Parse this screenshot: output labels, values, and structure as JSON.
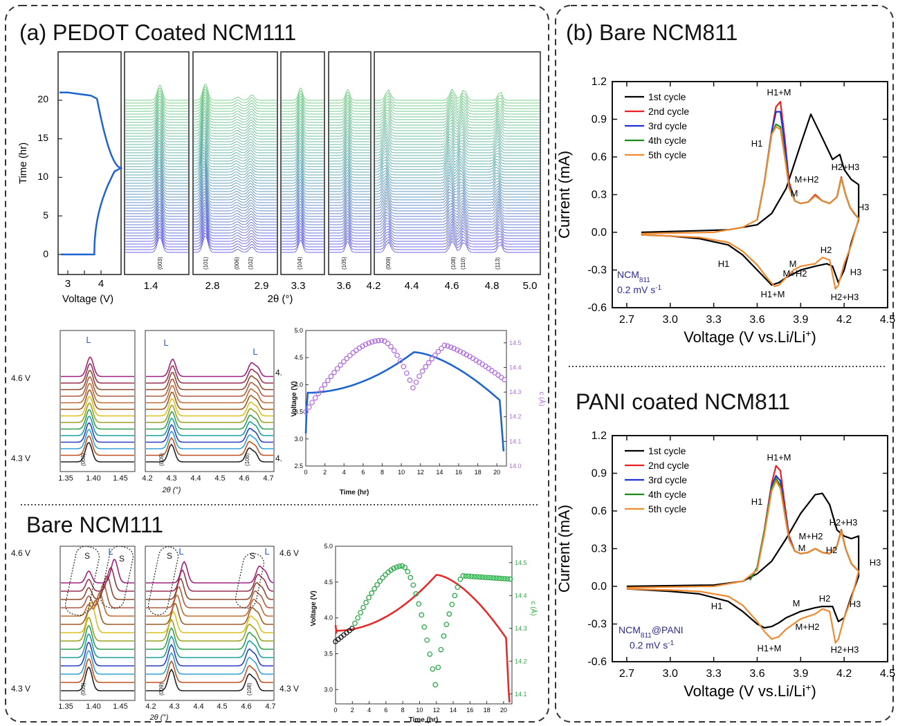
{
  "panel_a": {
    "label": "(a) PEDOT Coated NCM111",
    "waterfall": {
      "voltage_axis": {
        "xlabel": "Voltage (V)",
        "ylabel": "Time (hr)",
        "xticks": [
          "3",
          "4"
        ],
        "yticks": [
          "0",
          "5",
          "10",
          "15",
          "20"
        ]
      },
      "two_theta_label": "2θ (°)",
      "ticks": [
        "1.4",
        "2.8",
        "2.9",
        "3.3",
        "3.6",
        "4.2",
        "4.4",
        "4.6",
        "4.8",
        "5.0"
      ],
      "peak_labels": [
        "(003)",
        "(101)",
        "(006)",
        "(102)",
        "(104)",
        "(105)",
        "(009)",
        "(108)",
        "(110)",
        "(113)"
      ]
    },
    "coated_stack": {
      "voltage_labels": [
        "4.6 V",
        "4.3 V",
        "4.",
        "4."
      ],
      "marker": "L",
      "ticks_left": [
        "1.35",
        "1.40",
        "1.45"
      ],
      "ticks_right": [
        "4.2",
        "4.3",
        "4.4",
        "4.5",
        "4.6",
        "4.7"
      ],
      "peak_labels": [
        "(003)",
        "(009)",
        "(108)"
      ],
      "xlabel": "2θ (°)"
    },
    "coated_vt": {
      "xlabel": "Time (hr)",
      "ylabel": "Voltage (V)",
      "y2label": "c (Å)",
      "xticks": [
        "0",
        "2",
        "4",
        "6",
        "8",
        "10",
        "12",
        "14",
        "16",
        "18",
        "20"
      ],
      "yticks": [
        "2.5",
        "3.0",
        "3.5",
        "4.0",
        "4.5",
        "5.0"
      ],
      "y2ticks": [
        "14.0",
        "14.1",
        "14.2",
        "14.3",
        "14.4",
        "14.5"
      ]
    },
    "bare_label": "Bare NCM111",
    "bare_stack": {
      "voltage_labels": [
        "4.6 V",
        "4.3 V",
        "4.6 V",
        "4.3 V"
      ],
      "markers": [
        "S",
        "L"
      ],
      "ticks_left": [
        "1.35",
        "1.40",
        "1.45"
      ],
      "ticks_right": [
        "4.2",
        "4.3",
        "4.4",
        "4.5",
        "4.6",
        "4.7"
      ],
      "peak_labels": [
        "(003)",
        "(009)",
        "(108)"
      ],
      "xlabel": "2θ (°)"
    },
    "bare_vt": {
      "xlabel": "Time (hr)",
      "ylabel": "Voltage (V)",
      "y2label": "c (Å)",
      "xticks": [
        "0",
        "2",
        "4",
        "6",
        "8",
        "10",
        "12",
        "14",
        "16",
        "18",
        "20"
      ],
      "yticks": [
        "3.0",
        "3.5",
        "4.0",
        "4.5",
        "5.0"
      ],
      "y2ticks": [
        "14.1",
        "14.2",
        "14.3",
        "14.4",
        "14.5"
      ]
    }
  },
  "panel_b": {
    "label": "(b) Bare NCM811",
    "sub_label": "PANI coated NCM811"
  },
  "colors": {
    "cycle1": "#000000",
    "cycle2": "#e8201f",
    "cycle3": "#2030d8",
    "cycle4": "#1a8a1a",
    "cycle5": "#f08a30",
    "voltage_blue": "#1e64d0",
    "c_purple": "#b070e0",
    "voltage_red": "#e82a2a",
    "c_green": "#2ea84a",
    "note_blue": "#2a2a9a"
  },
  "chart_data": [
    {
      "type": "line",
      "title": "",
      "xlabel": "Voltage (V vs.Li/Li+)",
      "ylabel": "Current (mA)",
      "xlim": [
        2.6,
        4.5
      ],
      "ylim": [
        -0.6,
        1.2
      ],
      "xticks": [
        "2.7",
        "3.0",
        "3.3",
        "3.6",
        "3.9",
        "4.2",
        "4.5"
      ],
      "yticks": [
        "-0.6",
        "-0.3",
        "0.0",
        "0.3",
        "0.6",
        "0.9",
        "1.2"
      ],
      "legend": "top-left",
      "annotations": [
        "H1+M",
        "H1",
        "M+H2",
        "M",
        "H2+H3",
        "H3",
        "M",
        "H2",
        "H1",
        "M+H2",
        "H1+M",
        "H2+H3",
        "H3"
      ],
      "note": [
        "NCM811",
        "0.2 mV s-1"
      ],
      "series": [
        {
          "name": "1st cycle",
          "x": [
            2.8,
            3.4,
            3.6,
            3.7,
            3.8,
            3.9,
            3.97,
            4.05,
            4.12,
            4.17,
            4.2,
            4.25,
            4.3,
            4.3,
            4.25,
            4.2,
            4.16,
            4.12,
            4.08,
            4.0,
            3.9,
            3.8,
            3.75,
            3.7,
            3.6,
            3.5,
            3.4,
            3.2,
            3.0,
            2.8
          ],
          "y": [
            0.0,
            0.02,
            0.06,
            0.15,
            0.35,
            0.7,
            0.94,
            0.75,
            0.58,
            0.62,
            0.5,
            0.42,
            0.38,
            0.1,
            -0.08,
            -0.3,
            -0.4,
            -0.27,
            -0.25,
            -0.27,
            -0.3,
            -0.36,
            -0.4,
            -0.42,
            -0.3,
            -0.18,
            -0.1,
            -0.05,
            -0.03,
            -0.02
          ]
        },
        {
          "name": "2nd cycle",
          "x": [
            3.6,
            3.65,
            3.7,
            3.73,
            3.76,
            3.79,
            3.82,
            3.86,
            3.9,
            3.95,
            4.0,
            4.05,
            4.1,
            4.15,
            4.18,
            4.21,
            4.24,
            4.27,
            4.3
          ],
          "y": [
            0.1,
            0.4,
            0.8,
            1.0,
            1.04,
            0.75,
            0.4,
            0.25,
            0.23,
            0.24,
            0.3,
            0.25,
            0.23,
            0.28,
            0.44,
            0.3,
            0.2,
            0.15,
            0.11
          ]
        },
        {
          "name": "3rd cycle",
          "x": [
            3.6,
            3.65,
            3.7,
            3.73,
            3.76,
            3.79,
            3.82,
            3.86,
            3.9,
            3.95,
            4.0,
            4.05,
            4.1,
            4.15,
            4.18,
            4.21,
            4.24,
            4.27,
            4.3
          ],
          "y": [
            0.1,
            0.4,
            0.8,
            0.96,
            0.96,
            0.7,
            0.38,
            0.25,
            0.23,
            0.24,
            0.29,
            0.25,
            0.23,
            0.28,
            0.43,
            0.3,
            0.2,
            0.15,
            0.11
          ]
        },
        {
          "name": "4th cycle",
          "x": [
            3.6,
            3.65,
            3.7,
            3.73,
            3.76,
            3.79,
            3.82,
            3.86,
            3.9,
            3.95,
            4.0,
            4.05,
            4.1,
            4.15,
            4.18,
            4.21,
            4.24,
            4.27,
            4.3
          ],
          "y": [
            0.1,
            0.4,
            0.78,
            0.86,
            0.84,
            0.62,
            0.36,
            0.25,
            0.23,
            0.24,
            0.29,
            0.25,
            0.23,
            0.28,
            0.43,
            0.3,
            0.2,
            0.15,
            0.11
          ]
        },
        {
          "name": "5th cycle",
          "x": [
            2.8,
            3.3,
            3.5,
            3.6,
            3.65,
            3.7,
            3.73,
            3.76,
            3.79,
            3.82,
            3.86,
            3.9,
            3.95,
            4.0,
            4.05,
            4.1,
            4.15,
            4.18,
            4.21,
            4.24,
            4.3,
            4.3,
            4.25,
            4.2,
            4.16,
            4.14,
            4.1,
            4.05,
            4.0,
            3.95,
            3.9,
            3.85,
            3.8,
            3.75,
            3.72,
            3.68,
            3.6,
            3.5,
            3.4,
            3.2,
            3.0,
            2.8
          ],
          "y": [
            -0.01,
            0.0,
            0.04,
            0.1,
            0.4,
            0.78,
            0.84,
            0.82,
            0.6,
            0.35,
            0.25,
            0.23,
            0.24,
            0.29,
            0.25,
            0.23,
            0.28,
            0.43,
            0.3,
            0.2,
            0.11,
            0.11,
            -0.1,
            -0.25,
            -0.42,
            -0.45,
            -0.22,
            -0.2,
            -0.25,
            -0.26,
            -0.27,
            -0.3,
            -0.36,
            -0.42,
            -0.43,
            -0.38,
            -0.26,
            -0.15,
            -0.08,
            -0.04,
            -0.03,
            -0.02
          ]
        }
      ]
    },
    {
      "type": "line",
      "title": "",
      "xlabel": "Voltage (V vs.Li/Li+)",
      "ylabel": "Current (mA)",
      "xlim": [
        2.6,
        4.5
      ],
      "ylim": [
        -0.6,
        1.2
      ],
      "xticks": [
        "2.7",
        "3.0",
        "3.3",
        "3.6",
        "3.9",
        "4.2",
        "4.5"
      ],
      "yticks": [
        "-0.6",
        "-0.3",
        "0.0",
        "0.3",
        "0.6",
        "0.9",
        "1.2"
      ],
      "legend": "top-left",
      "annotations": [
        "H1+M",
        "H1",
        "H2+H3",
        "M+H2",
        "M",
        "H2",
        "H3",
        "H1",
        "M",
        "H2",
        "M+H2",
        "H3",
        "H1+M",
        "H2+H3"
      ],
      "note": [
        "NCM811@PANI",
        "0.2 mV s-1"
      ],
      "series": [
        {
          "name": "1st cycle",
          "x": [
            2.7,
            3.3,
            3.5,
            3.6,
            3.7,
            3.8,
            3.9,
            4.0,
            4.05,
            4.1,
            4.15,
            4.2,
            4.25,
            4.3,
            4.3,
            4.25,
            4.2,
            4.16,
            4.12,
            4.05,
            4.0,
            3.9,
            3.8,
            3.75,
            3.7,
            3.65,
            3.6,
            3.5,
            3.4,
            3.2,
            3.0,
            2.7
          ],
          "y": [
            0.0,
            0.01,
            0.04,
            0.1,
            0.2,
            0.38,
            0.58,
            0.73,
            0.74,
            0.65,
            0.45,
            0.4,
            0.38,
            0.4,
            0.08,
            -0.08,
            -0.25,
            -0.28,
            -0.16,
            -0.16,
            -0.17,
            -0.2,
            -0.25,
            -0.29,
            -0.32,
            -0.33,
            -0.3,
            -0.2,
            -0.12,
            -0.06,
            -0.04,
            -0.02
          ]
        },
        {
          "name": "2nd cycle",
          "x": [
            3.55,
            3.6,
            3.65,
            3.7,
            3.73,
            3.76,
            3.79,
            3.82,
            3.86,
            3.9,
            3.95,
            4.0,
            4.05,
            4.1,
            4.15,
            4.18,
            4.21,
            4.25,
            4.3
          ],
          "y": [
            0.05,
            0.15,
            0.45,
            0.82,
            0.96,
            0.92,
            0.65,
            0.4,
            0.28,
            0.26,
            0.27,
            0.3,
            0.27,
            0.26,
            0.32,
            0.45,
            0.3,
            0.18,
            0.12
          ]
        },
        {
          "name": "3rd cycle",
          "x": [
            3.55,
            3.6,
            3.65,
            3.7,
            3.73,
            3.76,
            3.79,
            3.82,
            3.86,
            3.9,
            3.95,
            4.0,
            4.05,
            4.1,
            4.15,
            4.18,
            4.21,
            4.25,
            4.3
          ],
          "y": [
            0.05,
            0.15,
            0.44,
            0.8,
            0.88,
            0.84,
            0.6,
            0.38,
            0.28,
            0.26,
            0.27,
            0.3,
            0.27,
            0.26,
            0.32,
            0.44,
            0.3,
            0.18,
            0.12
          ]
        },
        {
          "name": "4th cycle",
          "x": [
            3.55,
            3.6,
            3.65,
            3.7,
            3.73,
            3.76,
            3.79,
            3.82,
            3.86,
            3.9,
            3.95,
            4.0,
            4.05,
            4.1,
            4.15,
            4.18,
            4.21,
            4.25,
            4.3
          ],
          "y": [
            0.05,
            0.15,
            0.44,
            0.78,
            0.86,
            0.8,
            0.58,
            0.37,
            0.28,
            0.26,
            0.27,
            0.3,
            0.27,
            0.26,
            0.32,
            0.44,
            0.3,
            0.18,
            0.12
          ]
        },
        {
          "name": "5th cycle",
          "x": [
            2.7,
            3.3,
            3.5,
            3.6,
            3.65,
            3.7,
            3.73,
            3.76,
            3.79,
            3.82,
            3.86,
            3.9,
            3.95,
            4.0,
            4.05,
            4.1,
            4.15,
            4.18,
            4.21,
            4.25,
            4.3,
            4.3,
            4.25,
            4.2,
            4.16,
            4.14,
            4.1,
            4.05,
            4.0,
            3.95,
            3.9,
            3.85,
            3.8,
            3.75,
            3.7,
            3.65,
            3.6,
            3.5,
            3.4,
            3.2,
            3.0,
            2.7
          ],
          "y": [
            -0.01,
            0.0,
            0.04,
            0.13,
            0.42,
            0.76,
            0.84,
            0.78,
            0.57,
            0.37,
            0.28,
            0.26,
            0.27,
            0.3,
            0.27,
            0.26,
            0.32,
            0.44,
            0.3,
            0.18,
            0.12,
            0.12,
            -0.1,
            -0.25,
            -0.42,
            -0.45,
            -0.2,
            -0.18,
            -0.22,
            -0.24,
            -0.26,
            -0.3,
            -0.34,
            -0.4,
            -0.42,
            -0.36,
            -0.28,
            -0.15,
            -0.08,
            -0.04,
            -0.03,
            -0.02
          ]
        }
      ]
    }
  ]
}
